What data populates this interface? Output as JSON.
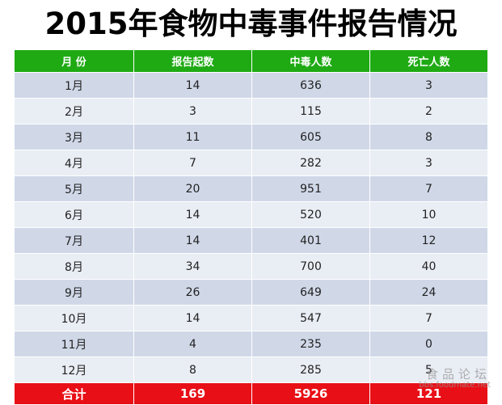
{
  "title": "2015年食物中毒事件报告情况",
  "table": {
    "headers": [
      "月 份",
      "报告起数",
      "中毒人数",
      "死亡人数"
    ],
    "rows": [
      [
        "1月",
        "14",
        "636",
        "3"
      ],
      [
        "2月",
        "3",
        "115",
        "2"
      ],
      [
        "3月",
        "11",
        "605",
        "8"
      ],
      [
        "4月",
        "7",
        "282",
        "3"
      ],
      [
        "5月",
        "20",
        "951",
        "7"
      ],
      [
        "6月",
        "14",
        "520",
        "10"
      ],
      [
        "7月",
        "14",
        "401",
        "12"
      ],
      [
        "8月",
        "34",
        "700",
        "40"
      ],
      [
        "9月",
        "26",
        "649",
        "24"
      ],
      [
        "10月",
        "14",
        "547",
        "7"
      ],
      [
        "11月",
        "4",
        "235",
        "0"
      ],
      [
        "12月",
        "8",
        "285",
        "5"
      ]
    ],
    "total": [
      "合计",
      "169",
      "5926",
      "121"
    ]
  },
  "watermark": {
    "text": "食品论坛",
    "url": "bbs.foodmate.net"
  },
  "colors": {
    "header_bg": "#1faa14",
    "total_bg": "#e80f16",
    "row_odd": "#d0d8e8",
    "row_even": "#e9edf4"
  }
}
